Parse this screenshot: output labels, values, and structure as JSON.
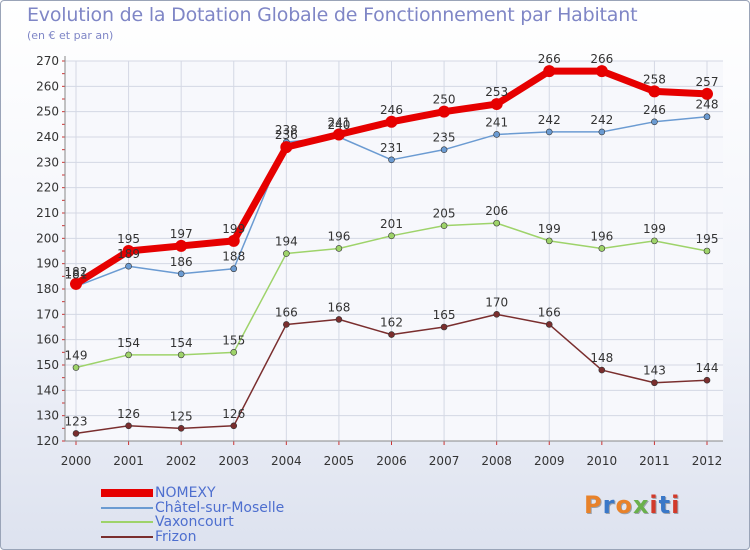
{
  "title": "Evolution de la Dotation Globale de Fonctionnement par Habitant",
  "subtitle": "(en € et par an)",
  "logo_text": "Proxiti",
  "logo_colors": [
    "#e8822a",
    "#3a78c8",
    "#e8822a",
    "#6ab04c",
    "#d23a2a",
    "#3a78c8",
    "#d23a2a"
  ],
  "chart_data": {
    "type": "line",
    "x": [
      "2000",
      "2001",
      "2002",
      "2003",
      "2004",
      "2005",
      "2006",
      "2007",
      "2008",
      "2009",
      "2010",
      "2011",
      "2012"
    ],
    "ylim": [
      120,
      270
    ],
    "yticks": [
      "120",
      "130",
      "140",
      "150",
      "160",
      "170",
      "180",
      "190",
      "200",
      "210",
      "220",
      "230",
      "240",
      "250",
      "260",
      "270"
    ],
    "grid": true,
    "legend_position": "bottom-left",
    "series": [
      {
        "name": "NOMEXY",
        "color": "#e60000",
        "values": [
          182,
          195,
          197,
          199,
          236,
          241,
          246,
          250,
          253,
          266,
          266,
          258,
          257
        ],
        "labels": [
          "182",
          "195",
          "197",
          "199",
          "236",
          "241",
          "246",
          "250",
          "253",
          "266",
          "266",
          "258",
          "257"
        ]
      },
      {
        "name": "Châtel-sur-Moselle",
        "color": "#6b9bd2",
        "values": [
          181,
          189,
          186,
          188,
          238,
          240,
          231,
          235,
          241,
          242,
          242,
          246,
          248
        ],
        "labels": [
          "181",
          "189",
          "186",
          "188",
          "238",
          "240",
          "231",
          "235",
          "241",
          "242",
          "242",
          "246",
          "248"
        ]
      },
      {
        "name": "Vaxoncourt",
        "color": "#9ed36a",
        "values": [
          149,
          154,
          154,
          155,
          194,
          196,
          201,
          205,
          206,
          199,
          196,
          199,
          195
        ],
        "labels": [
          "149",
          "154",
          "154",
          "155",
          "194",
          "196",
          "201",
          "205",
          "206",
          "199",
          "196",
          "199",
          "195"
        ]
      },
      {
        "name": "Frizon",
        "color": "#7a2e2e",
        "values": [
          123,
          126,
          125,
          126,
          166,
          168,
          162,
          165,
          170,
          166,
          148,
          143,
          144
        ],
        "labels": [
          "123",
          "126",
          "125",
          "126",
          "166",
          "168",
          "162",
          "165",
          "170",
          "166",
          "148",
          "143",
          "144"
        ]
      }
    ]
  }
}
